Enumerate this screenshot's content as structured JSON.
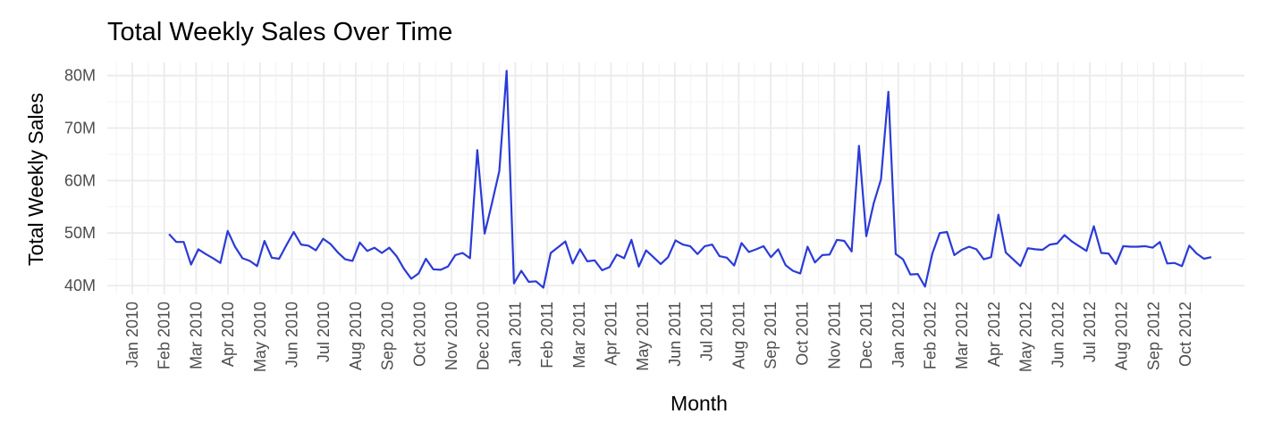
{
  "chart_data": {
    "type": "line",
    "title": "Total Weekly Sales Over Time",
    "xlabel": "Month",
    "ylabel": "Total Weekly Sales",
    "x_tick_labels": [
      "Jan 2010",
      "Feb 2010",
      "Mar 2010",
      "Apr 2010",
      "May 2010",
      "Jun 2010",
      "Jul 2010",
      "Aug 2010",
      "Sep 2010",
      "Oct 2010",
      "Nov 2010",
      "Dec 2010",
      "Jan 2011",
      "Feb 2011",
      "Mar 2011",
      "Apr 2011",
      "May 2011",
      "Jun 2011",
      "Jul 2011",
      "Aug 2011",
      "Sep 2011",
      "Oct 2011",
      "Nov 2011",
      "Dec 2011",
      "Jan 2012",
      "Feb 2012",
      "Mar 2012",
      "Apr 2012",
      "May 2012",
      "Jun 2012",
      "Jul 2012",
      "Aug 2012",
      "Sep 2012",
      "Oct 2012"
    ],
    "y_ticks": [
      40,
      50,
      60,
      70,
      80
    ],
    "y_tick_labels": [
      "40M",
      "50M",
      "60M",
      "70M",
      "80M"
    ],
    "ylim": [
      38.3,
      82.5
    ],
    "y_unit": "millions",
    "grid": true,
    "line_color": "#2b3bd6",
    "series": [
      {
        "start_week": "2010-02-05",
        "interval_days": 7,
        "values": [
          49.8,
          48.3,
          48.3,
          44.0,
          46.9,
          46.0,
          45.2,
          44.3,
          50.4,
          47.4,
          45.2,
          44.7,
          43.7,
          48.5,
          45.3,
          45.1,
          47.7,
          50.2,
          47.8,
          47.6,
          46.7,
          48.9,
          47.9,
          46.3,
          45.0,
          44.7,
          48.2,
          46.6,
          47.2,
          46.2,
          47.2,
          45.6,
          43.2,
          41.3,
          42.3,
          45.1,
          43.1,
          43.0,
          43.6,
          45.8,
          46.2,
          45.2,
          65.8,
          49.9,
          55.7,
          61.8,
          80.9,
          40.4,
          42.8,
          40.7,
          40.8,
          39.6,
          46.2,
          47.3,
          48.4,
          44.2,
          46.9,
          44.6,
          44.8,
          42.9,
          43.5,
          45.9,
          45.2,
          48.7,
          43.6,
          46.7,
          45.4,
          44.1,
          45.4,
          48.6,
          47.8,
          47.5,
          46.0,
          47.5,
          47.8,
          45.6,
          45.3,
          43.8,
          48.1,
          46.4,
          46.9,
          47.5,
          45.4,
          46.9,
          43.9,
          42.8,
          42.3,
          47.4,
          44.4,
          45.8,
          45.9,
          48.7,
          48.5,
          46.5,
          66.6,
          49.4,
          55.6,
          60.2,
          76.9,
          46.0,
          45.0,
          42.1,
          42.2,
          39.8,
          46.1,
          50.0,
          50.2,
          45.8,
          46.8,
          47.4,
          46.9,
          45.0,
          45.4,
          53.5,
          46.3,
          45.0,
          43.7,
          47.1,
          46.9,
          46.8,
          47.8,
          48.0,
          49.6,
          48.4,
          47.5,
          46.6,
          51.3,
          46.2,
          46.1,
          44.1,
          47.5,
          47.4,
          47.4,
          47.5,
          47.2,
          48.3,
          44.2,
          44.3,
          43.7,
          47.6,
          46.1,
          45.1,
          45.4
        ]
      }
    ]
  }
}
